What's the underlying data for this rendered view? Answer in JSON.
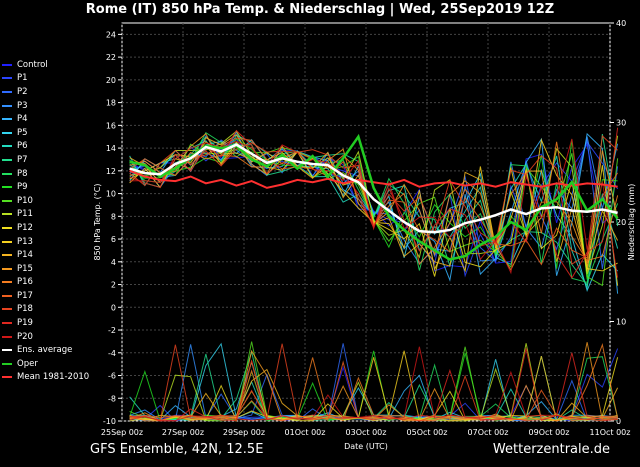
{
  "title": "Rome  (IT)  850 hPa Temp. & Niederschlag | Wed, 25Sep2019 12Z",
  "footer_left": "GFS Ensemble, 42N, 12.5E",
  "footer_right": "Wetterzentrale.de",
  "chart_data": {
    "type": "line",
    "xlabel": "Date (UTC)",
    "ylabel": "850 hPa Temp. (°C)",
    "ylabel_right": "Niederschlag (mm)",
    "ylim": [
      -10,
      25
    ],
    "ylim_right": [
      0,
      40
    ],
    "yticks": [
      -10,
      -8,
      -6,
      -4,
      -2,
      0,
      2,
      4,
      6,
      8,
      10,
      12,
      14,
      16,
      18,
      20,
      22,
      24
    ],
    "yticks_right": [
      0,
      10,
      20,
      30,
      40
    ],
    "xlim": [
      0,
      16
    ],
    "x_tick_labels": [
      "25Sep 00z",
      "27Sep 00z",
      "29Sep 00z",
      "01Oct 00z",
      "03Oct 00z",
      "05Oct 00z",
      "07Oct 00z",
      "09Oct 00z",
      "11Oct 00z"
    ],
    "x_tick_days": [
      0,
      2,
      4,
      6,
      8,
      10,
      12,
      14,
      16
    ],
    "grid": true,
    "legend": [
      {
        "name": "Control",
        "color": "#2020ff"
      },
      {
        "name": "P1",
        "color": "#2b45ff"
      },
      {
        "name": "P2",
        "color": "#2f6bff"
      },
      {
        "name": "P3",
        "color": "#3390ff"
      },
      {
        "name": "P4",
        "color": "#36b5ff"
      },
      {
        "name": "P5",
        "color": "#33d5f0"
      },
      {
        "name": "P6",
        "color": "#22dcc0"
      },
      {
        "name": "P7",
        "color": "#22e090"
      },
      {
        "name": "P8",
        "color": "#22e060"
      },
      {
        "name": "P9",
        "color": "#22e022"
      },
      {
        "name": "P10",
        "color": "#55e022"
      },
      {
        "name": "P11",
        "color": "#b8e022"
      },
      {
        "name": "P12",
        "color": "#f0e020"
      },
      {
        "name": "P13",
        "color": "#f5d020"
      },
      {
        "name": "P14",
        "color": "#f5b420"
      },
      {
        "name": "P15",
        "color": "#f59a20"
      },
      {
        "name": "P16",
        "color": "#f57d20"
      },
      {
        "name": "P17",
        "color": "#f06020"
      },
      {
        "name": "P18",
        "color": "#e84420"
      },
      {
        "name": "P19",
        "color": "#e02820"
      },
      {
        "name": "P20",
        "color": "#d01818"
      },
      {
        "name": "Ens. average",
        "color": "#ffffff"
      },
      {
        "name": "Oper",
        "color": "#22cc22"
      },
      {
        "name": "Mean 1981-2010",
        "color": "#ff3030"
      }
    ],
    "series_key_points": {
      "Ens. average": {
        "x": [
          0.25,
          0.75,
          1.25,
          1.75,
          2.25,
          2.75,
          3.25,
          3.75,
          4.25,
          4.75,
          5.25,
          5.75,
          6.25,
          6.75,
          7.25,
          7.75,
          8.25,
          8.75,
          9.25,
          9.75,
          10.25,
          10.75,
          11.25,
          11.75,
          12.25,
          12.75,
          13.25,
          13.75,
          14.25,
          14.75,
          15.25,
          15.75,
          16.25
        ],
        "y": [
          12.2,
          11.8,
          11.7,
          12.6,
          13.1,
          14.1,
          13.7,
          14.3,
          13.5,
          12.7,
          13.1,
          12.8,
          12.6,
          12.5,
          11.6,
          11.0,
          9.5,
          8.5,
          7.5,
          6.7,
          6.6,
          6.8,
          7.4,
          7.7,
          8.1,
          8.6,
          8.2,
          8.7,
          8.8,
          8.5,
          8.4,
          8.6,
          8.3
        ]
      },
      "Oper": {
        "x": [
          0.25,
          0.75,
          1.25,
          1.75,
          2.25,
          2.75,
          3.25,
          3.75,
          4.25,
          4.75,
          5.25,
          5.75,
          6.25,
          6.75,
          7.25,
          7.75,
          8.25,
          8.75,
          9.25,
          9.75,
          10.25,
          10.75,
          11.25,
          11.75,
          12.25,
          12.75,
          13.25,
          13.75,
          14.25,
          14.75,
          15.25,
          15.75,
          16.25
        ],
        "y": [
          12.8,
          12.5,
          11.5,
          12.2,
          13.2,
          14.2,
          14.0,
          14.2,
          13.0,
          12.4,
          13.4,
          12.2,
          13.3,
          11.5,
          13.1,
          15.0,
          10.5,
          8.0,
          6.8,
          5.8,
          5.0,
          4.2,
          4.5,
          5.5,
          6.2,
          7.5,
          6.8,
          8.8,
          9.5,
          11.0,
          8.5,
          9.5,
          7.8
        ]
      },
      "Mean 1981-2010": {
        "x": [
          0.25,
          0.75,
          1.25,
          1.75,
          2.25,
          2.75,
          3.25,
          3.75,
          4.25,
          4.75,
          5.25,
          5.75,
          6.25,
          6.75,
          7.25,
          7.75,
          8.25,
          8.75,
          9.25,
          9.75,
          10.25,
          10.75,
          11.25,
          11.75,
          12.25,
          12.75,
          13.25,
          13.75,
          14.25,
          14.75,
          15.25,
          15.75,
          16.25
        ],
        "y": [
          12.0,
          11.5,
          11.2,
          11.1,
          11.5,
          10.9,
          11.2,
          10.7,
          11.1,
          10.5,
          10.8,
          11.2,
          11.0,
          11.3,
          10.9,
          11.2,
          11.0,
          10.8,
          11.2,
          10.6,
          10.9,
          11.0,
          10.7,
          10.9,
          10.6,
          11.0,
          10.8,
          10.6,
          10.9,
          10.7,
          10.9,
          10.8,
          10.6
        ]
      }
    }
  }
}
